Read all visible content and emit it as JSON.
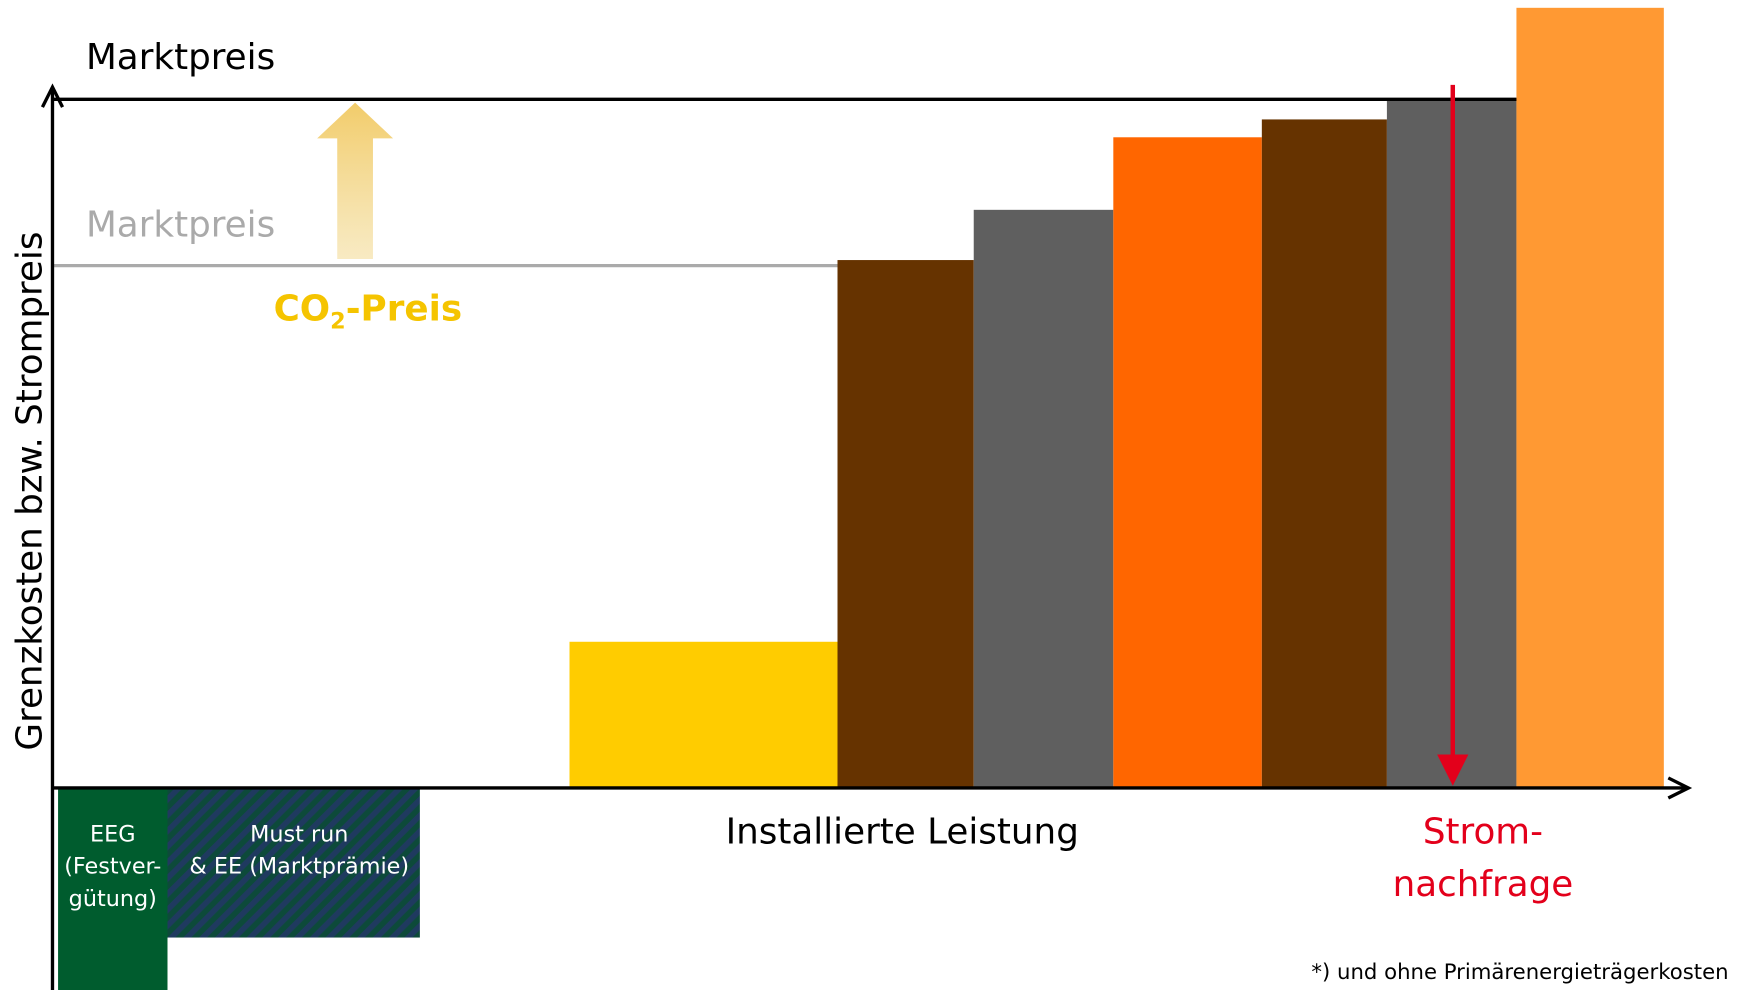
{
  "y_axis_label": "Grenzkosten bzw. Strompreis",
  "x_axis_label": "Installierte Leistung",
  "market_price_new": "Marktpreis",
  "market_price_old": "Marktpreis",
  "co2_label": {
    "main": "CO",
    "sub": "2",
    "rest": "-Preis"
  },
  "demand_label": [
    "Strom-",
    "nachfrage"
  ],
  "eeg_label": [
    "EEG",
    "(Festver-",
    "gütung)"
  ],
  "mustrun_label": [
    "Must run",
    "& EE (Marktprämie)"
  ],
  "footnote": "*) und ohne Primärenergieträgerkosten"
}
